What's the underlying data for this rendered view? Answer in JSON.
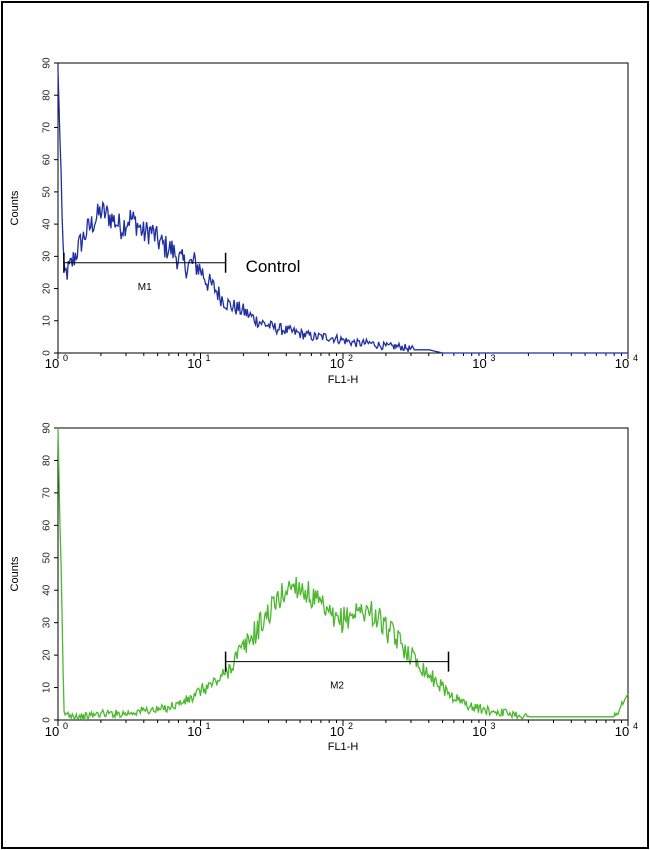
{
  "chart_data": [
    {
      "type": "line",
      "title": "",
      "xlabel": "FL1-H",
      "ylabel": "Counts",
      "x_scale": "log",
      "xlim": [
        1,
        10000
      ],
      "ylim": [
        0,
        90
      ],
      "x_ticks": [
        {
          "base": "10",
          "exp": "0"
        },
        {
          "base": "10",
          "exp": "1"
        },
        {
          "base": "10",
          "exp": "2"
        },
        {
          "base": "10",
          "exp": "3"
        },
        {
          "base": "10",
          "exp": "4"
        }
      ],
      "y_ticks": [
        "0",
        "10",
        "20",
        "30",
        "40",
        "50",
        "60",
        "70",
        "80",
        "90"
      ],
      "color": "#1f2fa0",
      "annotation": "Control",
      "marker": {
        "label": "M1",
        "x_start": 1.1,
        "x_end": 15,
        "y": 28
      },
      "series": [
        {
          "x": [
            1.0,
            1.1,
            1.2,
            1.4,
            1.6,
            1.8,
            2.0,
            2.2,
            2.5,
            2.8,
            3.2,
            3.6,
            4.0,
            4.5,
            5.0,
            5.6,
            6.3,
            7.1,
            8.0,
            9.0,
            10,
            11.2,
            12.6,
            14.1,
            15.8,
            17.8,
            20,
            25,
            32,
            40,
            50,
            63,
            79,
            100,
            126,
            158,
            200,
            251,
            316,
            400,
            500,
            1000,
            10000
          ],
          "y": [
            88,
            24,
            26,
            33,
            38,
            41,
            44,
            43,
            41,
            39,
            42,
            40,
            37,
            38,
            35,
            33,
            32,
            29,
            27,
            28,
            26,
            22,
            20,
            17,
            15,
            14,
            13,
            10,
            8,
            7,
            6,
            5,
            5,
            4,
            3,
            3,
            2,
            2,
            1,
            1,
            0,
            0,
            0
          ]
        }
      ]
    },
    {
      "type": "line",
      "title": "",
      "xlabel": "FL1-H",
      "ylabel": "Counts",
      "x_scale": "log",
      "xlim": [
        1,
        10000
      ],
      "ylim": [
        0,
        90
      ],
      "x_ticks": [
        {
          "base": "10",
          "exp": "0"
        },
        {
          "base": "10",
          "exp": "1"
        },
        {
          "base": "10",
          "exp": "2"
        },
        {
          "base": "10",
          "exp": "3"
        },
        {
          "base": "10",
          "exp": "4"
        }
      ],
      "y_ticks": [
        "0",
        "10",
        "20",
        "30",
        "40",
        "50",
        "60",
        "70",
        "80",
        "90"
      ],
      "color": "#4cb82f",
      "annotation": "",
      "marker": {
        "label": "M2",
        "x_start": 15,
        "x_end": 550,
        "y": 18
      },
      "series": [
        {
          "x": [
            1.0,
            1.1,
            1.5,
            2,
            3,
            4,
            5,
            6,
            7,
            8,
            9,
            10,
            12,
            14,
            16,
            18,
            20,
            25,
            30,
            35,
            40,
            45,
            50,
            60,
            70,
            80,
            90,
            100,
            120,
            140,
            160,
            180,
            200,
            250,
            300,
            350,
            400,
            500,
            600,
            800,
            1000,
            1500,
            2000,
            3000,
            5000,
            8000,
            10000
          ],
          "y": [
            90,
            2,
            1,
            2,
            2,
            3,
            3,
            4,
            5,
            6,
            7,
            9,
            11,
            13,
            16,
            20,
            22,
            28,
            33,
            37,
            40,
            42,
            41,
            38,
            35,
            32,
            30,
            31,
            33,
            34,
            33,
            31,
            28,
            24,
            20,
            17,
            14,
            10,
            7,
            4,
            3,
            2,
            1,
            1,
            1,
            1,
            8
          ]
        }
      ]
    }
  ]
}
